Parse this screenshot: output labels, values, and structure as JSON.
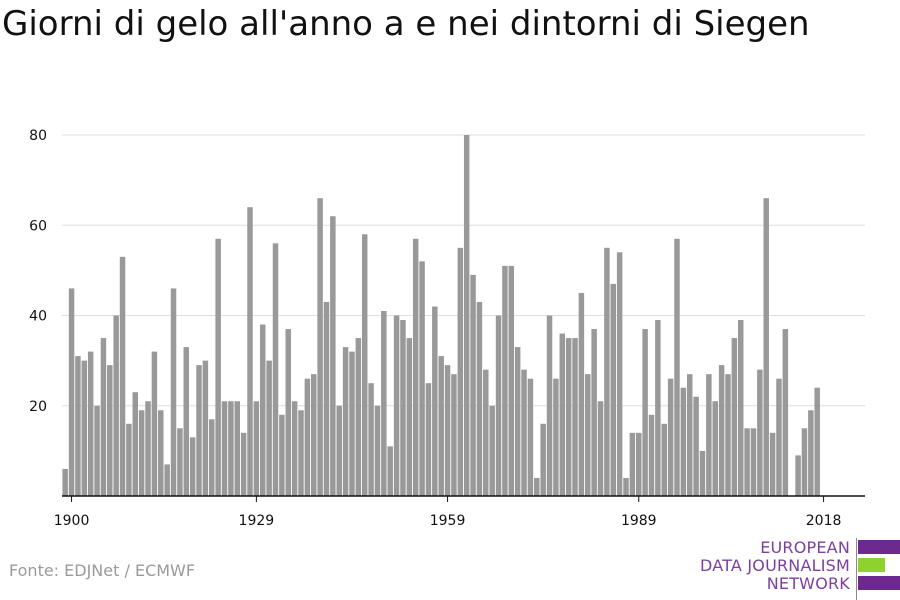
{
  "title": "Giorni di gelo all'anno a e nei dintorni di Siegen",
  "source": "Fonte: EDJNet / ECMWF",
  "logo": {
    "lines": [
      "EUROPEAN",
      "DATA JOURNALISM",
      "NETWORK"
    ],
    "text_color": "#7b3fa0",
    "bar_colors": [
      "#6c2a8f",
      "#8fd12f",
      "#6c2a8f"
    ]
  },
  "colors": {
    "bar": "#999999",
    "grid": "#dddddd",
    "axis": "#111111"
  },
  "chart_data": {
    "type": "bar",
    "title": "Giorni di gelo all'anno a e nei dintorni di Siegen",
    "xlabel": "",
    "ylabel": "",
    "x_start": 1899,
    "xlim": [
      1898.5,
      2024.5
    ],
    "ylim": [
      0,
      80
    ],
    "y_ticks": [
      20,
      40,
      60,
      80
    ],
    "x_ticks": [
      1900,
      1929,
      1959,
      1989,
      2018
    ],
    "grid": true,
    "legend": "none",
    "values": [
      6,
      46,
      31,
      30,
      32,
      20,
      35,
      29,
      40,
      53,
      16,
      23,
      19,
      21,
      32,
      19,
      7,
      46,
      15,
      33,
      13,
      29,
      30,
      17,
      57,
      21,
      21,
      21,
      14,
      64,
      21,
      38,
      30,
      56,
      18,
      37,
      21,
      19,
      26,
      27,
      66,
      43,
      62,
      20,
      33,
      32,
      35,
      58,
      25,
      20,
      41,
      11,
      40,
      39,
      35,
      57,
      52,
      25,
      42,
      31,
      29,
      27,
      55,
      80,
      49,
      43,
      28,
      20,
      40,
      51,
      51,
      33,
      28,
      26,
      4,
      16,
      40,
      26,
      36,
      35,
      35,
      45,
      27,
      37,
      21,
      55,
      47,
      54,
      4,
      14,
      14,
      37,
      18,
      39,
      16,
      26,
      57,
      24,
      27,
      22,
      10,
      27,
      21,
      29,
      27,
      35,
      39,
      15,
      15,
      28,
      66,
      14,
      26,
      37,
      0,
      9,
      15,
      19,
      24
    ]
  }
}
